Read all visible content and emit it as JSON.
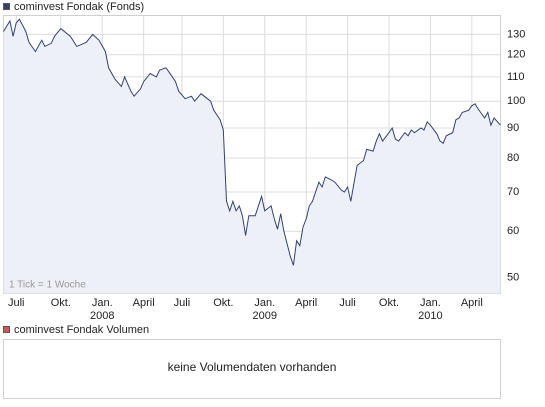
{
  "chart_data": {
    "type": "line",
    "title": "cominvest Fondak (Fonds)",
    "annotation": "1 Tick = 1 Woche",
    "color": "#34416e",
    "fill_color": "#eef0f8",
    "log_scale": true,
    "grid": true,
    "x": [
      0,
      2,
      3,
      4,
      5,
      7,
      8,
      10,
      12,
      13,
      15,
      16,
      18,
      21,
      23,
      26,
      28,
      30,
      32,
      33,
      35,
      37,
      38,
      40,
      41,
      43,
      44,
      46,
      48,
      49,
      51,
      52,
      54,
      55,
      57,
      59,
      60,
      62,
      63,
      65,
      66,
      68,
      69,
      70,
      71,
      72,
      73,
      74,
      75,
      76,
      77,
      79,
      80,
      81,
      82,
      84,
      85,
      86,
      87,
      88,
      90,
      91,
      92,
      93,
      94,
      95,
      96,
      97,
      99,
      100,
      101,
      103,
      104,
      106,
      107,
      108,
      109,
      111,
      112,
      113,
      114,
      116,
      117,
      118,
      119,
      121,
      122,
      123,
      124,
      126,
      127,
      128,
      129,
      131,
      132,
      133,
      134,
      136,
      137,
      138,
      139,
      141,
      142,
      143,
      144,
      146,
      147,
      148,
      149,
      151,
      152,
      153,
      154,
      156
    ],
    "values": [
      131.5,
      137,
      129,
      136,
      138,
      131.5,
      126,
      121.5,
      127,
      124,
      125.5,
      129,
      133,
      129,
      124,
      126,
      130,
      127,
      121.5,
      114,
      109,
      106,
      110,
      104,
      102,
      105,
      108,
      111.5,
      110,
      113,
      114,
      112,
      108,
      104,
      101,
      102,
      100,
      103,
      102,
      100,
      96.5,
      93,
      89.3,
      67.5,
      65,
      67.5,
      65,
      66.3,
      63.8,
      59,
      63.8,
      63.8,
      66.3,
      68.8,
      65,
      66.3,
      63,
      60.5,
      64.3,
      60,
      54.5,
      52.5,
      57.8,
      56.7,
      61,
      63,
      66.3,
      67.5,
      72.8,
      71.4,
      74.3,
      73.4,
      72.8,
      70.6,
      70,
      71.4,
      67.5,
      77.7,
      78.5,
      79.2,
      82.8,
      82.2,
      85.5,
      88,
      85.5,
      88.4,
      90,
      86.2,
      85.5,
      88.4,
      87.3,
      89.3,
      88.4,
      90,
      89.3,
      92.2,
      91,
      88,
      85.5,
      84.8,
      87.3,
      88.4,
      93,
      93.6,
      95.7,
      96.5,
      98.2,
      99,
      97,
      93.6,
      95.7,
      91,
      93.6,
      91
    ],
    "xlim": [
      0,
      156
    ],
    "xticks": [
      {
        "value": 4,
        "label": "Juli"
      },
      {
        "value": 18,
        "label": "Okt."
      },
      {
        "value": 31,
        "label": "Jan.",
        "year": "2008"
      },
      {
        "value": 44,
        "label": "April"
      },
      {
        "value": 56,
        "label": "Juli"
      },
      {
        "value": 69,
        "label": "Okt."
      },
      {
        "value": 82,
        "label": "Jan.",
        "year": "2009"
      },
      {
        "value": 95,
        "label": "April"
      },
      {
        "value": 108,
        "label": "Juli"
      },
      {
        "value": 121,
        "label": "Okt."
      },
      {
        "value": 134,
        "label": "Jan.",
        "year": "2010"
      },
      {
        "value": 147,
        "label": "April"
      }
    ],
    "ylim": [
      47,
      140
    ],
    "yticks": [
      50,
      60,
      70,
      80,
      90,
      100,
      110,
      120,
      130
    ],
    "volume_panel": {
      "title": "cominvest Fondak Volumen",
      "color": "#d9534f",
      "message": "keine Volumendaten vorhanden"
    }
  }
}
